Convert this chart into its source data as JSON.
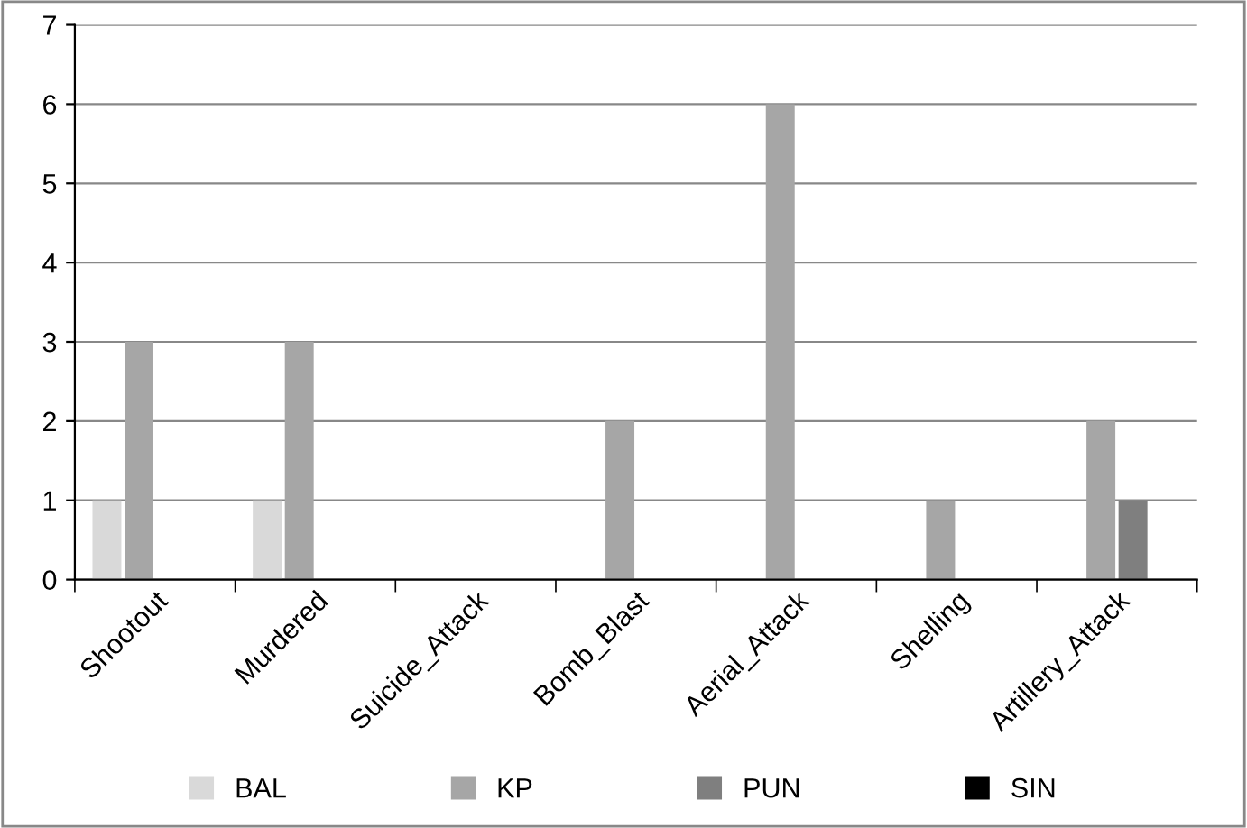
{
  "chart_data": {
    "type": "bar",
    "categories": [
      "Shootout",
      "Murdered",
      "Suicide_Attack",
      "Bomb_Blast",
      "Aerial_Attack",
      "Shelling",
      "Artillery_Attack"
    ],
    "series": [
      {
        "name": "BAL",
        "color": "#d9d9d9",
        "values": [
          1,
          1,
          0,
          0,
          0,
          0,
          0
        ]
      },
      {
        "name": "KP",
        "color": "#a6a6a6",
        "values": [
          3,
          3,
          0,
          2,
          6,
          1,
          2
        ]
      },
      {
        "name": "PUN",
        "color": "#7f7f7f",
        "values": [
          0,
          0,
          0,
          0,
          0,
          0,
          1
        ]
      },
      {
        "name": "SIN",
        "color": "#000000",
        "values": [
          0,
          0,
          0,
          0,
          0,
          0,
          0
        ]
      }
    ],
    "ylim": [
      0,
      7
    ],
    "yticks": [
      0,
      1,
      2,
      3,
      4,
      5,
      6,
      7
    ],
    "grid": "y",
    "legend": "bottom"
  }
}
